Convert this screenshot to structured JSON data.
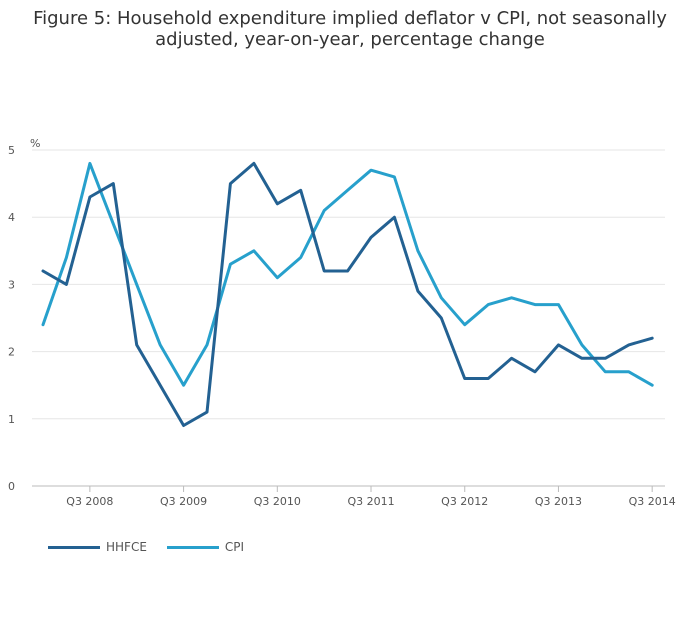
{
  "title": "Figure 5: Household expenditure implied deflator v CPI, not seasonally adjusted, year-on-year, percentage change",
  "chart_data": {
    "type": "line",
    "title": "Figure 5: Household expenditure implied deflator v CPI, not seasonally adjusted, year-on-year, percentage change",
    "ylabel": "%",
    "xlabel": "",
    "ylim": [
      0,
      5
    ],
    "yticks": [
      "0",
      "1",
      "2",
      "3",
      "4",
      "5"
    ],
    "grid": true,
    "legend_position": "bottom-left",
    "x": [
      "Q1 2008",
      "Q2 2008",
      "Q3 2008",
      "Q4 2008",
      "Q1 2009",
      "Q2 2009",
      "Q3 2009",
      "Q4 2009",
      "Q1 2010",
      "Q2 2010",
      "Q3 2010",
      "Q4 2010",
      "Q1 2011",
      "Q2 2011",
      "Q3 2011",
      "Q4 2011",
      "Q1 2012",
      "Q2 2012",
      "Q3 2012",
      "Q4 2012",
      "Q1 2013",
      "Q2 2013",
      "Q3 2013",
      "Q4 2013",
      "Q1 2014",
      "Q2 2014",
      "Q3 2014"
    ],
    "xtick_labels": [
      {
        "index": 2,
        "label": "Q3 2008"
      },
      {
        "index": 6,
        "label": "Q3 2009"
      },
      {
        "index": 10,
        "label": "Q3 2010"
      },
      {
        "index": 14,
        "label": "Q3 2011"
      },
      {
        "index": 18,
        "label": "Q3 2012"
      },
      {
        "index": 22,
        "label": "Q3 2013"
      },
      {
        "index": 26,
        "label": "Q3 2014"
      }
    ],
    "series": [
      {
        "name": "HHFCE",
        "color": "#236192",
        "values": [
          3.2,
          3.0,
          4.3,
          4.5,
          2.1,
          1.5,
          0.9,
          1.1,
          4.5,
          4.8,
          4.2,
          4.4,
          3.2,
          3.2,
          3.7,
          4.0,
          2.9,
          2.5,
          1.6,
          1.6,
          1.9,
          1.7,
          2.1,
          1.9,
          1.9,
          2.1,
          2.2
        ]
      },
      {
        "name": "CPI",
        "color": "#27A0CC",
        "values": [
          2.4,
          3.4,
          4.8,
          3.9,
          3.0,
          2.1,
          1.5,
          2.1,
          3.3,
          3.5,
          3.1,
          3.4,
          4.1,
          4.4,
          4.7,
          4.6,
          3.5,
          2.8,
          2.4,
          2.7,
          2.8,
          2.7,
          2.7,
          2.1,
          1.7,
          1.7,
          1.5
        ]
      }
    ]
  }
}
